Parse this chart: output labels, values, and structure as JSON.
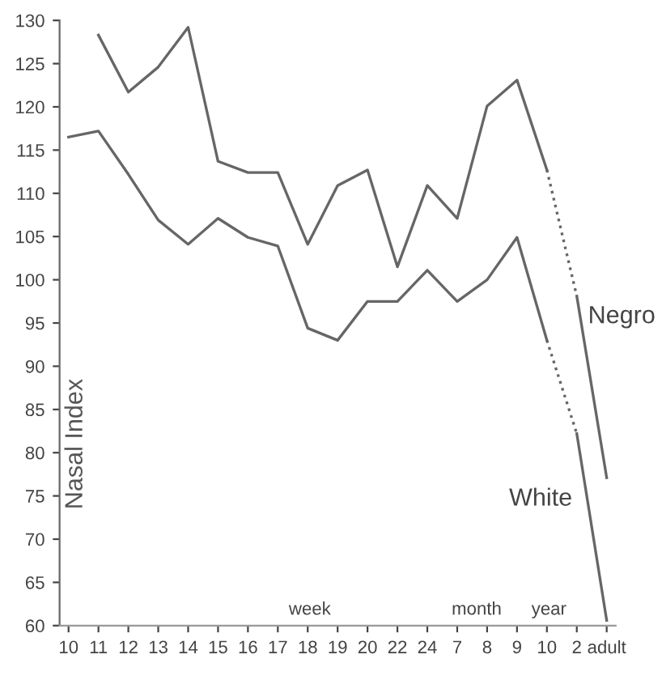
{
  "chart_data": {
    "type": "line",
    "ylabel": "Nasal Index",
    "categories": [
      "10",
      "11",
      "12",
      "13",
      "14",
      "15",
      "16",
      "17",
      "18",
      "19",
      "20",
      "22",
      "24",
      "7",
      "8",
      "9",
      "10",
      "2",
      "adult"
    ],
    "series": [
      {
        "name": "Negro",
        "color": "#666666",
        "line_style": "solid",
        "values": [
          null,
          128.3,
          121.7,
          124.6,
          129.2,
          113.7,
          112.4,
          112.4,
          104.1,
          110.9,
          112.7,
          101.5,
          110.9,
          107.1,
          120.1,
          123.1,
          112.7,
          98.1,
          77.1
        ]
      },
      {
        "name": "White",
        "color": "#666666",
        "line_style": "solid",
        "values": [
          116.5,
          117.2,
          112.2,
          106.9,
          104.1,
          107.1,
          104.9,
          103.9,
          94.4,
          93.0,
          97.5,
          97.5,
          101.1,
          97.5,
          100.0,
          104.9,
          93.0,
          82.2,
          60.6
        ]
      }
    ],
    "ylim": [
      60,
      130
    ],
    "yticks": [
      60,
      65,
      70,
      75,
      80,
      85,
      90,
      95,
      100,
      105,
      110,
      115,
      120,
      125,
      130
    ],
    "annotations": [
      "week",
      "month",
      "year"
    ],
    "grid": false,
    "legend": false,
    "marker": "none"
  }
}
